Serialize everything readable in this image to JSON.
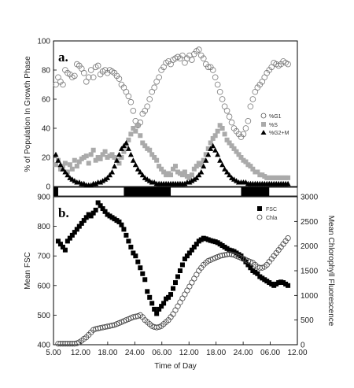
{
  "chart_data": [
    {
      "panel_label": "a.",
      "type": "scatter",
      "ylabel": "% of Population In Growth Phase",
      "ylim": [
        0,
        100
      ],
      "yticks": [
        0,
        20,
        40,
        60,
        80,
        100
      ],
      "xlim": [
        5,
        57
      ],
      "x_unit": "hours from 00:00 of day 1",
      "legend_placement": "right",
      "series": [
        {
          "name": "%G1",
          "marker": "open-circle",
          "x": [
            5.5,
            6,
            6.5,
            7,
            7.5,
            8,
            8.5,
            9,
            9.5,
            10,
            10.5,
            11,
            11.5,
            12,
            12.5,
            13,
            13.5,
            14,
            14.5,
            15,
            15.5,
            16,
            16.5,
            17,
            17.5,
            18,
            18.5,
            19,
            19.5,
            20,
            20.5,
            21,
            21.5,
            22,
            22.5,
            23,
            23.5,
            24,
            24.5,
            25,
            25.5,
            26,
            26.5,
            27,
            27.5,
            28,
            28.5,
            29,
            29.5,
            30,
            30.5,
            31,
            31.5,
            32,
            32.5,
            33,
            33.5,
            34,
            34.5,
            35,
            35.5,
            36,
            36.5,
            37,
            37.5,
            38,
            38.5,
            39,
            39.5,
            40,
            40.5,
            41,
            41.5,
            42,
            42.5,
            43,
            43.5,
            44,
            44.5,
            45,
            45.5,
            46,
            46.5,
            47,
            47.5,
            48,
            48.5,
            49,
            49.5,
            50,
            50.5,
            51,
            51.5,
            52,
            52.5,
            53,
            53.5,
            54,
            54.5,
            55
          ],
          "y": [
            70,
            75,
            72,
            70,
            80,
            78,
            77,
            75,
            76,
            84,
            83,
            81,
            78,
            72,
            75,
            80,
            75,
            82,
            83,
            77,
            79,
            80,
            78,
            80,
            79,
            78,
            76,
            74,
            70,
            68,
            65,
            62,
            58,
            52,
            45,
            42,
            44,
            50,
            52,
            55,
            60,
            65,
            68,
            72,
            75,
            80,
            82,
            85,
            86,
            84,
            87,
            88,
            89,
            88,
            90,
            85,
            88,
            90,
            87,
            91,
            93,
            94,
            90,
            88,
            84,
            82,
            82,
            80,
            75,
            70,
            65,
            60,
            55,
            52,
            48,
            44,
            40,
            38,
            36,
            34,
            36,
            40,
            45,
            55,
            60,
            65,
            68,
            70,
            72,
            75,
            78,
            80,
            82,
            85,
            84,
            83,
            84,
            86,
            85,
            84
          ]
        },
        {
          "name": "%S",
          "marker": "filled-square",
          "x": [
            5.5,
            6,
            6.5,
            7,
            7.5,
            8,
            8.5,
            9,
            9.5,
            10,
            10.5,
            11,
            11.5,
            12,
            12.5,
            13,
            13.5,
            14,
            14.5,
            15,
            15.5,
            16,
            16.5,
            17,
            17.5,
            18,
            18.5,
            19,
            19.5,
            20,
            20.5,
            21,
            21.5,
            22,
            22.5,
            23,
            23.5,
            24,
            24.5,
            25,
            25.5,
            26,
            26.5,
            27,
            27.5,
            28,
            28.5,
            29,
            29.5,
            30,
            30.5,
            31,
            31.5,
            32,
            32.5,
            33,
            33.5,
            34,
            34.5,
            35,
            35.5,
            36,
            36.5,
            37,
            37.5,
            38,
            38.5,
            39,
            39.5,
            40,
            40.5,
            41,
            41.5,
            42,
            42.5,
            43,
            43.5,
            44,
            44.5,
            45,
            45.5,
            46,
            46.5,
            47,
            47.5,
            48,
            48.5,
            49,
            49.5,
            50,
            50.5,
            51,
            51.5,
            52,
            52.5,
            53,
            53.5,
            54,
            54.5,
            55
          ],
          "y": [
            15,
            18,
            12,
            14,
            16,
            10,
            15,
            12,
            18,
            14,
            17,
            19,
            20,
            21,
            16,
            22,
            25,
            18,
            20,
            19,
            22,
            24,
            20,
            21,
            22,
            20,
            18,
            16,
            20,
            24,
            28,
            32,
            36,
            40,
            38,
            42,
            35,
            30,
            28,
            26,
            25,
            22,
            20,
            18,
            14,
            12,
            10,
            8,
            9,
            8,
            12,
            14,
            10,
            9,
            8,
            10,
            7,
            6,
            8,
            12,
            14,
            16,
            15,
            18,
            22,
            26,
            30,
            33,
            35,
            38,
            42,
            40,
            36,
            32,
            30,
            28,
            26,
            24,
            22,
            20,
            18,
            17,
            15,
            14,
            12,
            10,
            10,
            8,
            8,
            7,
            6,
            6,
            6,
            6,
            6,
            6,
            6,
            6,
            6,
            6
          ]
        },
        {
          "name": "%G2+M",
          "marker": "filled-triangle",
          "x": [
            5.5,
            6,
            6.5,
            7,
            7.5,
            8,
            8.5,
            9,
            9.5,
            10,
            10.5,
            11,
            11.5,
            12,
            12.5,
            13,
            13.5,
            14,
            14.5,
            15,
            15.5,
            16,
            16.5,
            17,
            17.5,
            18,
            18.5,
            19,
            19.5,
            20,
            20.5,
            21,
            21.5,
            22,
            22.5,
            23,
            23.5,
            24,
            24.5,
            25,
            25.5,
            26,
            26.5,
            27,
            27.5,
            28,
            28.5,
            29,
            29.5,
            30,
            30.5,
            31,
            31.5,
            32,
            32.5,
            33,
            33.5,
            34,
            34.5,
            35,
            35.5,
            36,
            36.5,
            37,
            37.5,
            38,
            38.5,
            39,
            39.5,
            40,
            40.5,
            41,
            41.5,
            42,
            42.5,
            43,
            43.5,
            44,
            44.5,
            45,
            45.5,
            46,
            46.5,
            47,
            47.5,
            48,
            48.5,
            49,
            49.5,
            50,
            50.5,
            51,
            51.5,
            52,
            52.5,
            53,
            53.5,
            54,
            54.5,
            55
          ],
          "y": [
            22,
            18,
            15,
            12,
            10,
            8,
            6,
            5,
            4,
            3,
            3,
            2,
            2,
            1,
            1,
            1,
            2,
            2,
            3,
            3,
            4,
            5,
            6,
            8,
            10,
            14,
            18,
            22,
            26,
            28,
            30,
            26,
            22,
            18,
            15,
            12,
            10,
            8,
            6,
            5,
            4,
            3,
            3,
            2,
            2,
            2,
            2,
            2,
            2,
            2,
            2,
            2,
            2,
            2,
            2,
            2,
            3,
            3,
            4,
            5,
            6,
            8,
            10,
            14,
            18,
            22,
            26,
            28,
            25,
            22,
            18,
            15,
            12,
            10,
            8,
            6,
            5,
            4,
            3,
            3,
            3,
            3,
            2,
            2,
            2,
            2,
            2,
            2,
            2,
            2,
            2,
            2,
            2,
            2,
            2,
            2,
            2,
            2,
            2,
            2
          ]
        }
      ]
    },
    {
      "panel_label": "b.",
      "type": "scatter",
      "xlabel": "Time of Day",
      "xticks": [
        "5.00",
        "12.00",
        "18.00",
        "24.00",
        "06.00",
        "12.00",
        "18.00",
        "24.00",
        "06.00",
        "12.00"
      ],
      "ylabel_left": "Mean FSC",
      "ylabel_right": "Mean Chlorophyll Fluorescence",
      "ylim_left": [
        400,
        900
      ],
      "ylim_right": [
        0,
        3000
      ],
      "yticks_left": [
        400,
        500,
        600,
        700,
        800,
        900
      ],
      "yticks_right": [
        0,
        500,
        1000,
        1500,
        2000,
        2500,
        3000
      ],
      "xlim": [
        5,
        57
      ],
      "x_unit": "hours from 00:00 of day 1",
      "legend_placement": "top-right",
      "series": [
        {
          "name": "FSC",
          "marker": "filled-square",
          "axis": "left",
          "x": [
            6,
            6.5,
            7,
            7.5,
            8,
            8.5,
            9,
            9.5,
            10,
            10.5,
            11,
            11.5,
            12,
            12.5,
            13,
            13.5,
            14,
            14.5,
            15,
            15.5,
            16,
            16.5,
            17,
            17.5,
            18,
            18.5,
            19,
            19.5,
            20,
            20.5,
            21,
            21.5,
            22,
            22.5,
            23,
            23.5,
            24,
            24.5,
            25,
            25.5,
            26,
            26.5,
            27,
            27.5,
            28,
            28.5,
            29,
            29.5,
            30,
            30.5,
            31,
            31.5,
            32,
            32.5,
            33,
            33.5,
            34,
            34.5,
            35,
            35.5,
            36,
            36.5,
            37,
            37.5,
            38,
            38.5,
            39,
            39.5,
            40,
            40.5,
            41,
            41.5,
            42,
            42.5,
            43,
            43.5,
            44,
            44.5,
            45,
            45.5,
            46,
            46.5,
            47,
            47.5,
            48,
            48.5,
            49,
            49.5,
            50,
            50.5,
            51,
            51.5,
            52,
            52.5,
            53,
            53.5,
            54,
            54.5,
            55
          ],
          "y": [
            750,
            740,
            730,
            720,
            750,
            760,
            770,
            780,
            790,
            800,
            810,
            820,
            830,
            840,
            835,
            845,
            855,
            880,
            870,
            860,
            850,
            840,
            835,
            830,
            825,
            820,
            815,
            805,
            790,
            770,
            750,
            730,
            710,
            700,
            680,
            660,
            640,
            620,
            580,
            560,
            540,
            520,
            505,
            520,
            530,
            540,
            555,
            560,
            570,
            590,
            610,
            630,
            650,
            670,
            690,
            700,
            710,
            720,
            730,
            740,
            750,
            755,
            760,
            758,
            755,
            752,
            750,
            748,
            745,
            740,
            735,
            730,
            725,
            720,
            718,
            715,
            710,
            705,
            700,
            690,
            680,
            670,
            660,
            650,
            645,
            640,
            630,
            625,
            620,
            615,
            610,
            605,
            600,
            605,
            610,
            612,
            610,
            605,
            600
          ]
        },
        {
          "name": "Chla",
          "marker": "open-circle",
          "axis": "right",
          "x": [
            6,
            6.5,
            7,
            7.5,
            8,
            8.5,
            9,
            9.5,
            10,
            10.5,
            11,
            11.5,
            12,
            12.5,
            13,
            13.5,
            14,
            14.5,
            15,
            15.5,
            16,
            16.5,
            17,
            17.5,
            18,
            18.5,
            19,
            19.5,
            20,
            20.5,
            21,
            21.5,
            22,
            22.5,
            23,
            23.5,
            24,
            24.5,
            25,
            25.5,
            26,
            26.5,
            27,
            27.5,
            28,
            28.5,
            29,
            29.5,
            30,
            30.5,
            31,
            31.5,
            32,
            32.5,
            33,
            33.5,
            34,
            34.5,
            35,
            35.5,
            36,
            36.5,
            37,
            37.5,
            38,
            38.5,
            39,
            39.5,
            40,
            40.5,
            41,
            41.5,
            42,
            42.5,
            43,
            43.5,
            44,
            44.5,
            45,
            45.5,
            46,
            46.5,
            47,
            47.5,
            48,
            48.5,
            49,
            49.5,
            50,
            50.5,
            51,
            51.5,
            52,
            52.5,
            53,
            53.5,
            54,
            54.5,
            55
          ],
          "y": [
            20,
            20,
            20,
            20,
            20,
            20,
            20,
            20,
            30,
            50,
            80,
            120,
            150,
            200,
            250,
            300,
            320,
            330,
            340,
            350,
            360,
            370,
            380,
            390,
            400,
            420,
            440,
            460,
            480,
            500,
            520,
            540,
            560,
            570,
            580,
            600,
            560,
            500,
            460,
            420,
            380,
            360,
            350,
            360,
            380,
            420,
            460,
            500,
            560,
            620,
            700,
            780,
            860,
            940,
            1020,
            1100,
            1180,
            1260,
            1340,
            1420,
            1500,
            1560,
            1620,
            1660,
            1700,
            1720,
            1740,
            1760,
            1780,
            1800,
            1810,
            1820,
            1830,
            1840,
            1830,
            1820,
            1800,
            1780,
            1760,
            1740,
            1720,
            1700,
            1680,
            1660,
            1620,
            1580,
            1560,
            1560,
            1580,
            1620,
            1680,
            1740,
            1800,
            1860,
            1920,
            1980,
            2040,
            2100,
            2160
          ]
        }
      ]
    }
  ],
  "light_dark_bar": {
    "dark_intervals": [
      [
        5,
        6
      ],
      [
        20,
        30
      ],
      [
        45,
        51
      ]
    ]
  }
}
